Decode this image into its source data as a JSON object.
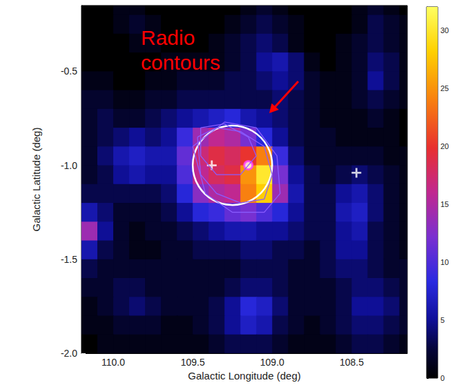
{
  "chart_data": {
    "type": "heatmap",
    "x_label": "Galactic Longitude (deg)",
    "y_label": "Galactic Latitude (deg)",
    "xlim": [
      110.2,
      108.15
    ],
    "xticks": [
      {
        "value": 110,
        "label": "110.0"
      },
      109.5,
      {
        "value": 109,
        "label": "109.0"
      },
      108.5
    ],
    "ylim": [
      -2,
      -0.15
    ],
    "yticks": [
      -0.5,
      {
        "value": -1,
        "label": "-1.0"
      },
      -1.5,
      {
        "value": -2,
        "label": "-2.0"
      }
    ],
    "x": [
      110.15,
      110.05,
      109.95,
      109.85,
      109.75,
      109.65,
      109.55,
      109.45,
      109.35,
      109.25,
      109.15,
      109.05,
      108.95,
      108.85,
      108.75,
      108.65,
      108.55,
      108.45,
      108.35,
      108.25,
      108.15
    ],
    "y": [
      -0.15,
      -0.25,
      -0.35,
      -0.45,
      -0.55,
      -0.65,
      -0.75,
      -0.85,
      -0.95,
      -1.05,
      -1.15,
      -1.25,
      -1.35,
      -1.45,
      -1.55,
      -1.65,
      -1.75,
      -1.85,
      -1.95
    ],
    "z": [
      [
        0,
        0,
        1,
        1,
        0,
        0,
        0,
        0,
        0,
        0,
        1,
        2,
        1,
        0,
        0,
        0,
        0,
        1,
        2,
        1,
        0
      ],
      [
        0,
        0,
        1,
        2,
        1,
        0,
        0,
        0,
        0,
        1,
        2,
        3,
        2,
        1,
        0,
        0,
        0,
        1,
        3,
        2,
        1
      ],
      [
        0,
        0,
        0,
        1,
        1,
        0,
        0,
        0,
        1,
        2,
        3,
        4,
        3,
        1,
        0,
        0,
        1,
        2,
        3,
        2,
        1
      ],
      [
        0,
        0,
        0,
        0,
        0,
        1,
        1,
        1,
        1,
        2,
        3,
        5,
        6,
        4,
        1,
        0,
        1,
        2,
        4,
        3,
        1
      ],
      [
        1,
        1,
        0,
        0,
        1,
        1,
        2,
        2,
        2,
        3,
        3,
        4,
        5,
        4,
        2,
        1,
        1,
        2,
        5,
        3,
        1
      ],
      [
        2,
        2,
        1,
        1,
        2,
        2,
        3,
        3,
        3,
        3,
        3,
        3,
        4,
        3,
        2,
        1,
        1,
        2,
        3,
        2,
        1
      ],
      [
        2,
        3,
        2,
        2,
        3,
        4,
        5,
        6,
        7,
        8,
        6,
        5,
        4,
        3,
        2,
        1,
        1,
        1,
        2,
        1,
        0
      ],
      [
        2,
        3,
        4,
        5,
        4,
        5,
        9,
        14,
        16,
        15,
        12,
        8,
        5,
        3,
        2,
        2,
        1,
        1,
        1,
        1,
        0
      ],
      [
        2,
        4,
        6,
        7,
        6,
        6,
        11,
        17,
        19,
        18,
        20,
        24,
        9,
        4,
        2,
        2,
        2,
        2,
        2,
        1,
        1
      ],
      [
        2,
        3,
        5,
        6,
        5,
        5,
        10,
        16,
        18,
        19,
        25,
        30,
        12,
        5,
        3,
        2,
        3,
        4,
        3,
        2,
        1
      ],
      [
        3,
        3,
        3,
        3,
        3,
        4,
        8,
        13,
        15,
        16,
        24,
        28,
        14,
        6,
        3,
        3,
        5,
        6,
        4,
        2,
        1
      ],
      [
        6,
        4,
        2,
        2,
        2,
        3,
        5,
        8,
        9,
        11,
        12,
        10,
        8,
        5,
        3,
        3,
        6,
        7,
        4,
        2,
        1
      ],
      [
        14,
        5,
        2,
        1,
        2,
        2,
        3,
        4,
        5,
        6,
        6,
        5,
        5,
        4,
        3,
        3,
        5,
        6,
        3,
        2,
        1
      ],
      [
        6,
        3,
        2,
        1,
        1,
        2,
        2,
        3,
        3,
        3,
        4,
        4,
        3,
        3,
        2,
        3,
        5,
        5,
        3,
        2,
        1
      ],
      [
        3,
        2,
        2,
        2,
        2,
        2,
        2,
        2,
        2,
        2,
        3,
        3,
        3,
        2,
        2,
        3,
        4,
        4,
        3,
        2,
        2
      ],
      [
        2,
        2,
        3,
        3,
        2,
        2,
        2,
        2,
        2,
        3,
        4,
        4,
        3,
        2,
        2,
        2,
        3,
        4,
        4,
        3,
        2
      ],
      [
        1,
        2,
        3,
        4,
        3,
        2,
        2,
        2,
        3,
        5,
        8,
        7,
        4,
        2,
        2,
        2,
        3,
        5,
        5,
        4,
        2
      ],
      [
        1,
        1,
        2,
        2,
        2,
        1,
        1,
        2,
        3,
        5,
        7,
        6,
        3,
        2,
        1,
        2,
        3,
        4,
        4,
        3,
        2
      ],
      [
        0,
        1,
        1,
        1,
        1,
        1,
        1,
        1,
        2,
        3,
        3,
        3,
        2,
        1,
        1,
        1,
        2,
        3,
        3,
        2,
        1
      ]
    ],
    "colorbar": {
      "range": [
        0,
        32
      ],
      "ticks": [
        0,
        5,
        10,
        15,
        20,
        25,
        30
      ]
    },
    "region": {
      "l": 109.25,
      "b": -1,
      "radius": 0.25,
      "color": "#ffffff"
    },
    "markers": [
      {
        "l": 109.38,
        "b": -1,
        "marker": "plus",
        "color": "#ffffff"
      },
      {
        "l": 108.47,
        "b": -1.04,
        "marker": "plus",
        "color": "#ffffff"
      },
      {
        "l": 109.15,
        "b": -1,
        "marker": "circle",
        "color": "#ff40ff"
      }
    ],
    "radio_contours": {
      "color": "#8a5cff",
      "lines": [
        [
          [
            109.45,
            -0.8
          ],
          [
            109.3,
            -0.78
          ],
          [
            109.15,
            -0.85
          ],
          [
            109.1,
            -0.95
          ],
          [
            109.2,
            -1.05
          ],
          [
            109.35,
            -1.05
          ],
          [
            109.45,
            -0.95
          ],
          [
            109.45,
            -0.8
          ]
        ],
        [
          [
            109.47,
            -0.85
          ],
          [
            109.35,
            -0.8
          ],
          [
            109.2,
            -0.82
          ],
          [
            109.05,
            -0.9
          ],
          [
            109.0,
            -1.05
          ],
          [
            109.05,
            -1.18
          ],
          [
            109.2,
            -1.2
          ],
          [
            109.35,
            -1.15
          ],
          [
            109.45,
            -1.05
          ],
          [
            109.47,
            -0.85
          ]
        ],
        [
          [
            109.5,
            -0.9
          ],
          [
            109.3,
            -0.77
          ],
          [
            109.1,
            -0.8
          ],
          [
            108.97,
            -0.95
          ],
          [
            108.95,
            -1.15
          ],
          [
            109.05,
            -1.25
          ],
          [
            109.25,
            -1.25
          ],
          [
            109.42,
            -1.15
          ],
          [
            109.5,
            -0.9
          ]
        ]
      ]
    },
    "annotations": [
      {
        "text": "Radio contours",
        "color": "#ff0000"
      }
    ]
  }
}
